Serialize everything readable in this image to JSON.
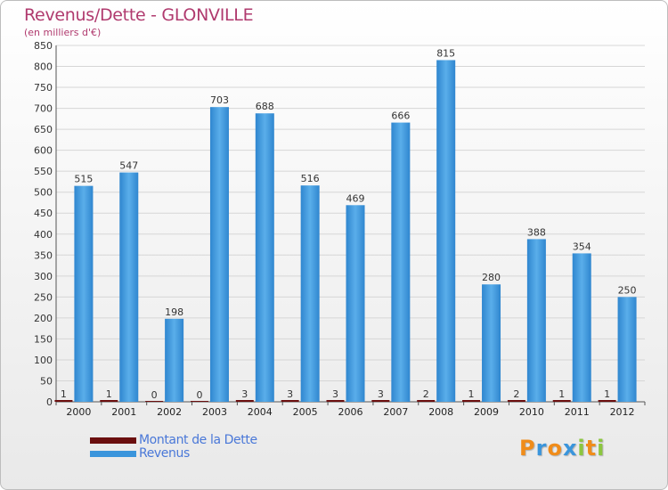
{
  "chart_data": {
    "type": "bar",
    "title": "Revenus/Dette - GLONVILLE",
    "subtitle": "(en milliers d'€)",
    "categories": [
      "2000",
      "2001",
      "2002",
      "2003",
      "2004",
      "2005",
      "2006",
      "2007",
      "2008",
      "2009",
      "2010",
      "2011",
      "2012"
    ],
    "series": [
      {
        "name": "Montant de la Dette",
        "color": "#6b0f0f",
        "values": [
          1,
          1,
          0,
          0,
          3,
          3,
          3,
          3,
          2,
          1,
          2,
          1,
          1
        ]
      },
      {
        "name": "Revenus",
        "color": "#3a95dc",
        "values": [
          515,
          547,
          198,
          703,
          688,
          516,
          469,
          666,
          815,
          280,
          388,
          354,
          250
        ]
      }
    ],
    "yticks": [
      0,
      50,
      100,
      150,
      200,
      250,
      300,
      350,
      400,
      450,
      500,
      550,
      600,
      650,
      700,
      750,
      800,
      850
    ],
    "ylim": [
      0,
      850
    ],
    "grid": true,
    "legend": "bottom-left"
  },
  "logo": {
    "text": "Proxiti",
    "letters": [
      {
        "ch": "P",
        "color": "#f08c1a"
      },
      {
        "ch": "r",
        "color": "#3a95dc"
      },
      {
        "ch": "o",
        "color": "#f08c1a"
      },
      {
        "ch": "x",
        "color": "#3a95dc"
      },
      {
        "ch": "i",
        "color": "#8cc63f"
      },
      {
        "ch": "t",
        "color": "#f08c1a"
      },
      {
        "ch": "i",
        "color": "#8cc63f"
      }
    ]
  }
}
